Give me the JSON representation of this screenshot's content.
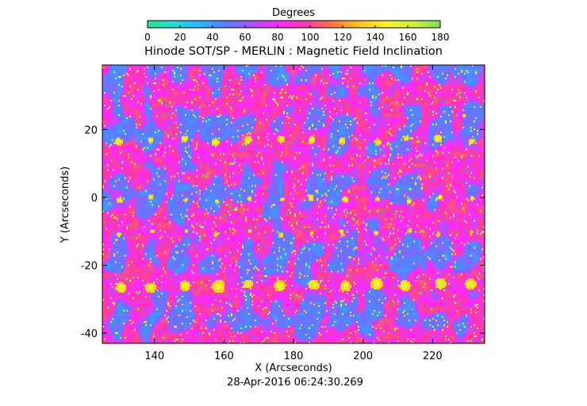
{
  "chart_data": {
    "type": "heatmap",
    "title": "Hinode SOT/SP - MERLIN : Magnetic Field Inclination",
    "xlabel": "X (Arcseconds)",
    "ylabel": "Y (Arcseconds)",
    "timestamp": "28-Apr-2016 06:24:30.269",
    "xlim": [
      125,
      235
    ],
    "ylim": [
      -43,
      39
    ],
    "x_ticks": [
      "140",
      "160",
      "180",
      "200",
      "220"
    ],
    "y_ticks": [
      "-40",
      "-20",
      "0",
      "20"
    ],
    "x_tick_values": [
      140,
      160,
      180,
      200,
      220
    ],
    "y_tick_values": [
      -40,
      -20,
      0,
      20
    ],
    "colorbar": {
      "title": "Degrees",
      "range": [
        0,
        180
      ],
      "tick_labels": [
        "0",
        "20",
        "40",
        "60",
        "80",
        "100",
        "120",
        "140",
        "160",
        "180"
      ],
      "tick_values": [
        0,
        20,
        40,
        60,
        80,
        100,
        120,
        140,
        160,
        180
      ],
      "colors": [
        "#2fe08a",
        "#22ddd8",
        "#28b4ff",
        "#5b7bff",
        "#b050ff",
        "#ff28ff",
        "#ff3aa8",
        "#ff7a3c",
        "#ffc622",
        "#fff22a",
        "#c9f23a",
        "#7fe05a"
      ]
    },
    "field_note": "tiled inclination map; dominant values 80-110 deg with cyan/blue patches (40-60 deg) and yellow/orange spots (130-160 deg) repeating in rows"
  }
}
